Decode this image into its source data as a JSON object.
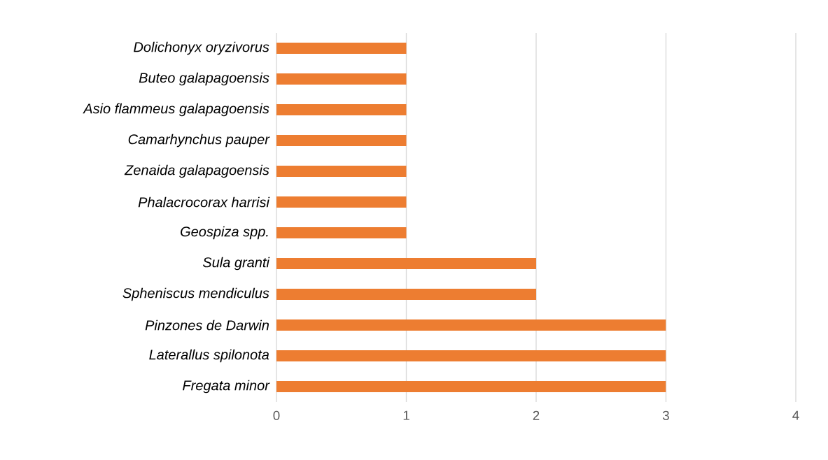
{
  "chart_data": {
    "type": "bar",
    "orientation": "horizontal",
    "categories": [
      "Dolichonyx oryzivorus",
      "Buteo galapagoensis",
      "Asio flammeus galapagoensis",
      "Camarhynchus pauper",
      "Zenaida galapagoensis",
      "Phalacrocorax harrisi",
      "Geospiza spp.",
      "Sula granti",
      "Spheniscus mendiculus",
      "Pinzones de Darwin",
      "Laterallus spilonota",
      "Fregata minor"
    ],
    "values": [
      1,
      1,
      1,
      1,
      1,
      1,
      1,
      2,
      2,
      3,
      3,
      3
    ],
    "color": "#ed7d31",
    "xlim": [
      0,
      4
    ],
    "xticks": [
      0,
      1,
      2,
      3,
      4
    ],
    "grid": "x"
  }
}
